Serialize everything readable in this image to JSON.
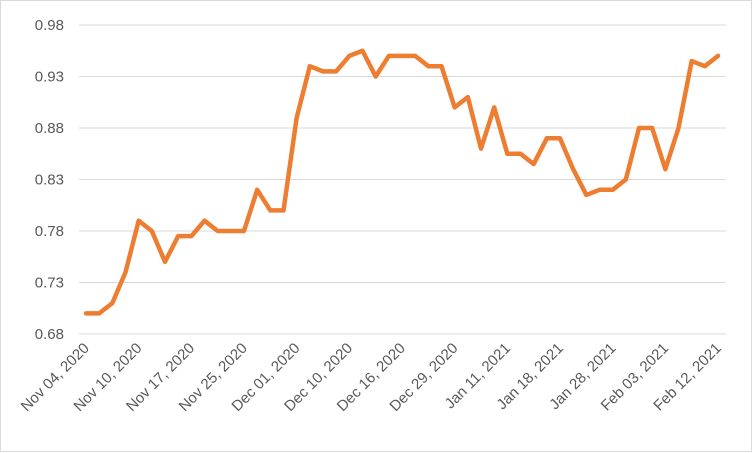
{
  "chart_data": {
    "type": "line",
    "title": "",
    "xlabel": "",
    "ylabel": "",
    "ylim": [
      0.68,
      0.98
    ],
    "y_ticks": [
      "0.68",
      "0.73",
      "0.78",
      "0.83",
      "0.88",
      "0.93",
      "0.98"
    ],
    "grid": true,
    "legend": "none",
    "x_tick_labels": [
      "Nov 04, 2020",
      "Nov 10, 2020",
      "Nov 17, 2020",
      "Nov 25, 2020",
      "Dec 01, 2020",
      "Dec 10, 2020",
      "Dec 16, 2020",
      "Dec 29, 2020",
      "Jan 11, 2021",
      "Jan 18, 2021",
      "Jan 28, 2021",
      "Feb 03, 2021",
      "Feb 12, 2021"
    ],
    "label_every": 4,
    "line_color": "#ed7d31",
    "series": [
      {
        "values": [
          0.7,
          0.7,
          0.71,
          0.74,
          0.79,
          0.78,
          0.75,
          0.775,
          0.775,
          0.79,
          0.78,
          0.78,
          0.78,
          0.82,
          0.8,
          0.8,
          0.89,
          0.94,
          0.935,
          0.935,
          0.95,
          0.955,
          0.93,
          0.95,
          0.95,
          0.95,
          0.94,
          0.94,
          0.9,
          0.91,
          0.86,
          0.9,
          0.855,
          0.855,
          0.845,
          0.87,
          0.87,
          0.84,
          0.815,
          0.82,
          0.82,
          0.83,
          0.88,
          0.88,
          0.84,
          0.88,
          0.945,
          0.94,
          0.95
        ]
      }
    ]
  }
}
